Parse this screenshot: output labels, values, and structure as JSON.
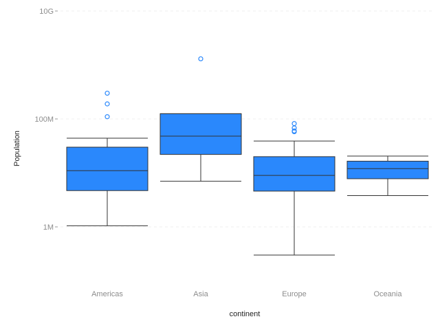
{
  "chart_data": {
    "type": "boxplot",
    "title": "",
    "xlabel": "continent",
    "ylabel": "Population",
    "y_scale": "log10",
    "ylim": [
      80000,
      10000000000
    ],
    "y_ticks": [
      {
        "value": 1000000,
        "label": "1M"
      },
      {
        "value": 100000000,
        "label": "100M"
      },
      {
        "value": 10000000000,
        "label": "10G"
      }
    ],
    "grid": true,
    "box_color": "#2a88fc",
    "outlier_color": "#2a88fc",
    "categories": [
      "Americas",
      "Asia",
      "Europe",
      "Oceania"
    ],
    "boxes": [
      {
        "name": "Americas",
        "whisker_low": 1050000,
        "q1": 4700000,
        "median": 11000000,
        "q3": 30000000,
        "whisker_high": 44000000,
        "outliers": [
          110000000,
          190000000,
          300000000
        ]
      },
      {
        "name": "Asia",
        "whisker_low": 7000000,
        "q1": 22000000,
        "median": 48000000,
        "q3": 125000000,
        "whisker_high": 125000000,
        "outliers": [
          1300000000
        ]
      },
      {
        "name": "Europe",
        "whisker_low": 300000,
        "q1": 4600000,
        "median": 9000000,
        "q3": 20000000,
        "whisker_high": 39000000,
        "outliers": [
          58000000,
          60000000,
          68000000,
          82000000
        ]
      },
      {
        "name": "Oceania",
        "whisker_low": 3800000,
        "q1": 7800000,
        "median": 12000000,
        "q3": 16500000,
        "whisker_high": 20500000,
        "outliers": []
      }
    ]
  }
}
